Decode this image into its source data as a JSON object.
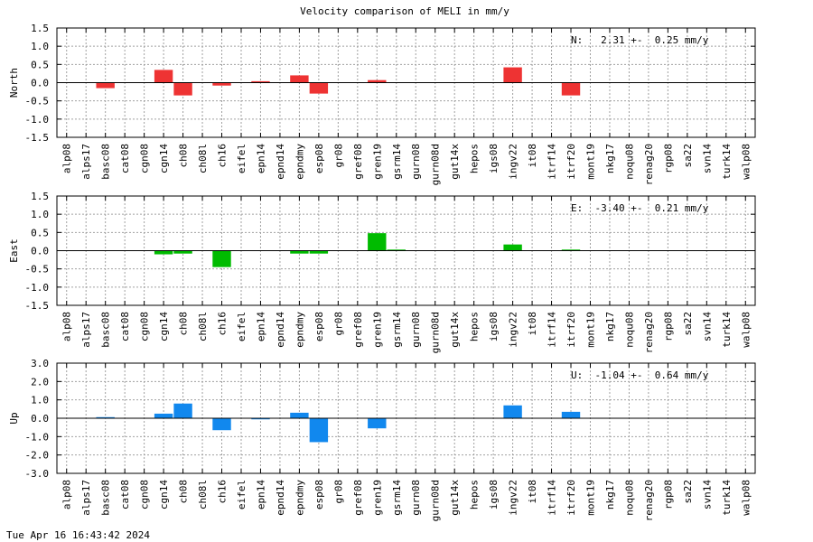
{
  "title": "Velocity comparison of MELI in mm/y",
  "footer": "Tue Apr 16 16:43:42 2024",
  "chart_data": [
    {
      "type": "bar",
      "title": "Velocity comparison of MELI in mm/y",
      "ylabel": "North",
      "ylim": [
        -1.5,
        1.5
      ],
      "yticks": [
        "-1.5",
        "-1.0",
        "-0.5",
        "0.0",
        "0.5",
        "1.0",
        "1.5"
      ],
      "grid": true,
      "color": "#ee3333",
      "annotation": "N:   2.31 +-  0.25 mm/y",
      "categories": [
        "alp08",
        "alps17",
        "basc08",
        "cat08",
        "cgn08",
        "cgn14",
        "ch08",
        "ch08l",
        "ch16",
        "eifel",
        "epn14",
        "epnd14",
        "epndmy",
        "esp08",
        "gr08",
        "gref08",
        "gren19",
        "gsrm14",
        "gurn08",
        "gurn08d",
        "gut14x",
        "hepos",
        "igs08",
        "ingv22",
        "it08",
        "itrf14",
        "itrf20",
        "mont19",
        "nkg17",
        "noqu08",
        "renag20",
        "rgp08",
        "sa22",
        "svn14",
        "turk14",
        "walp08"
      ],
      "values": [
        0,
        0,
        -0.15,
        0,
        0,
        0.35,
        -0.35,
        0,
        -0.08,
        0,
        0.04,
        0,
        0.2,
        -0.3,
        0,
        0,
        0.07,
        0,
        0,
        0,
        0,
        0,
        0,
        0.42,
        0,
        0,
        -0.35,
        0,
        0,
        0,
        0,
        0,
        0,
        0,
        0,
        0
      ]
    },
    {
      "type": "bar",
      "ylabel": "East",
      "ylim": [
        -1.5,
        1.5
      ],
      "yticks": [
        "-1.5",
        "-1.0",
        "-0.5",
        "0.0",
        "0.5",
        "1.0",
        "1.5"
      ],
      "grid": true,
      "color": "#00bb00",
      "annotation": "E:  -3.40 +-  0.21 mm/y",
      "categories": [
        "alp08",
        "alps17",
        "basc08",
        "cat08",
        "cgn08",
        "cgn14",
        "ch08",
        "ch08l",
        "ch16",
        "eifel",
        "epn14",
        "epnd14",
        "epndmy",
        "esp08",
        "gr08",
        "gref08",
        "gren19",
        "gsrm14",
        "gurn08",
        "gurn08d",
        "gut14x",
        "hepos",
        "igs08",
        "ingv22",
        "it08",
        "itrf14",
        "itrf20",
        "mont19",
        "nkg17",
        "noqu08",
        "renag20",
        "rgp08",
        "sa22",
        "svn14",
        "turk14",
        "walp08"
      ],
      "values": [
        0,
        0,
        0,
        0,
        0,
        -0.1,
        -0.08,
        0,
        -0.45,
        0,
        0,
        0,
        -0.08,
        -0.08,
        0,
        0,
        0.48,
        0.03,
        0,
        0,
        0,
        0,
        0,
        0.17,
        0,
        0,
        0.03,
        0,
        0,
        0,
        0,
        0,
        0,
        0,
        0,
        0
      ]
    },
    {
      "type": "bar",
      "ylabel": "Up",
      "ylim": [
        -3.0,
        3.0
      ],
      "yticks": [
        "-3.0",
        "-2.0",
        "-1.0",
        "0.0",
        "1.0",
        "2.0",
        "3.0"
      ],
      "grid": true,
      "color": "#1188ee",
      "annotation": "U:  -1.04 +-  0.64 mm/y",
      "categories": [
        "alp08",
        "alps17",
        "basc08",
        "cat08",
        "cgn08",
        "cgn14",
        "ch08",
        "ch08l",
        "ch16",
        "eifel",
        "epn14",
        "epnd14",
        "epndmy",
        "esp08",
        "gr08",
        "gref08",
        "gren19",
        "gsrm14",
        "gurn08",
        "gurn08d",
        "gut14x",
        "hepos",
        "igs08",
        "ingv22",
        "it08",
        "itrf14",
        "itrf20",
        "mont19",
        "nkg17",
        "noqu08",
        "renag20",
        "rgp08",
        "sa22",
        "svn14",
        "turk14",
        "walp08"
      ],
      "values": [
        0,
        0,
        0.06,
        0,
        0,
        0.25,
        0.8,
        0,
        -0.65,
        0,
        -0.06,
        0,
        0.3,
        -1.3,
        0,
        0,
        -0.55,
        0,
        0,
        0,
        0,
        0,
        0,
        0.7,
        0,
        0,
        0.35,
        0,
        0,
        0,
        0,
        0,
        0,
        0,
        0,
        0
      ]
    }
  ]
}
